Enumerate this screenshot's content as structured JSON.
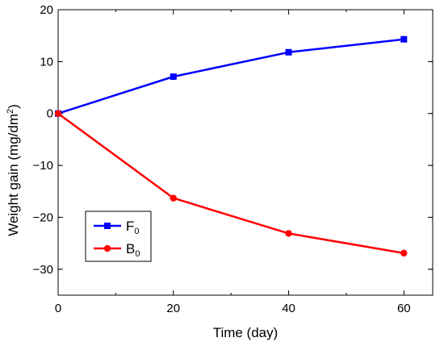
{
  "chart_data": {
    "type": "line",
    "xlabel": "Time (day)",
    "ylabel_main": "Weight gain (mg/dm",
    "ylabel_sup": "2",
    "ylabel_end": ")",
    "xlim": [
      0,
      65
    ],
    "ylim": [
      -35,
      20
    ],
    "x_ticks": [
      0,
      20,
      40,
      60
    ],
    "x_tick_labels": [
      "0",
      "20",
      "40",
      "60"
    ],
    "y_ticks": [
      20,
      10,
      0,
      -10,
      -20,
      -30
    ],
    "y_tick_labels": [
      "20",
      "10",
      "0",
      "−10",
      "−20",
      "−30"
    ],
    "grid": false,
    "legend_position": "bottom-left",
    "series": [
      {
        "name_main": "F",
        "name_sub": "0",
        "color": "#0000ff",
        "marker": "square",
        "x": [
          0,
          20,
          40,
          60
        ],
        "y": [
          0,
          7.1,
          11.8,
          14.3
        ]
      },
      {
        "name_main": "B",
        "name_sub": "0",
        "color": "#ff0000",
        "marker": "circle",
        "x": [
          0,
          20,
          40,
          60
        ],
        "y": [
          0,
          -16.3,
          -23.1,
          -26.9
        ]
      }
    ]
  }
}
